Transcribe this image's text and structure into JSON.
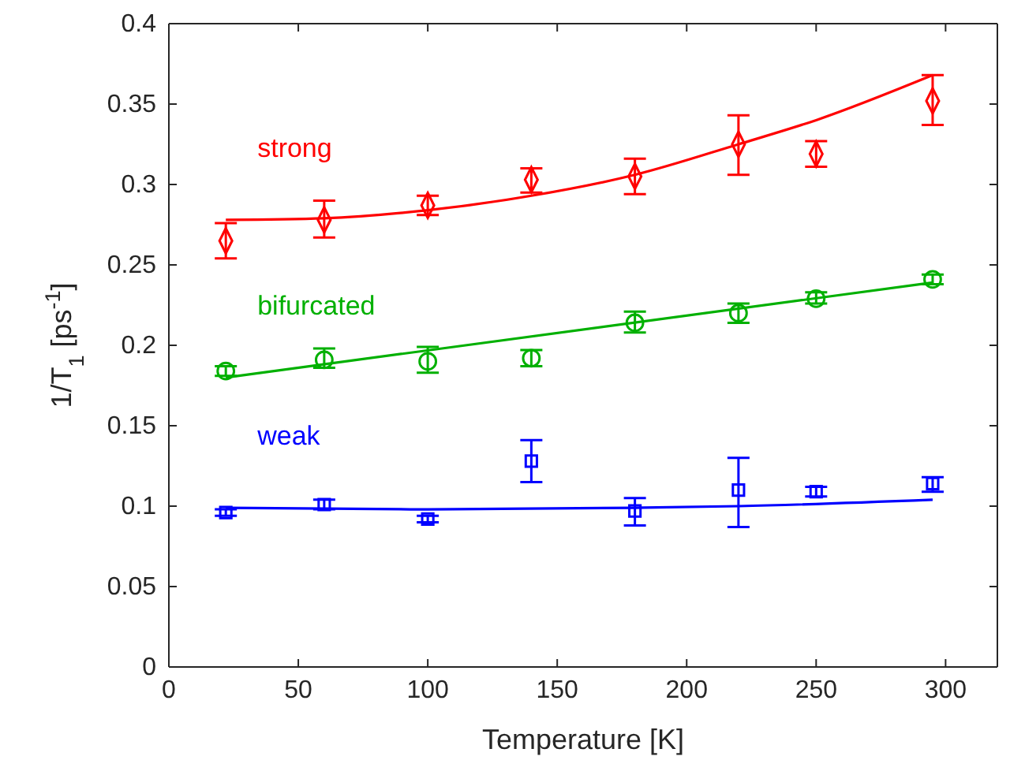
{
  "chart_data": {
    "type": "scatter",
    "xlabel": "Temperature [K]",
    "ylabel": "1/T$_{1}$ [ps$^{-1}$]",
    "xlim": [
      0,
      320
    ],
    "xticks": [
      0,
      50,
      100,
      150,
      200,
      250,
      300
    ],
    "ylim": [
      0,
      0.4
    ],
    "yticks": [
      0,
      0.05,
      0.1,
      0.15,
      0.2,
      0.25,
      0.3,
      0.35,
      0.4
    ],
    "grid": false,
    "legend": false,
    "series": [
      {
        "name": "strong",
        "marker": "diamond",
        "color": "#ff0000",
        "x": [
          22,
          60,
          100,
          140,
          180,
          220,
          250,
          295
        ],
        "values": [
          0.265,
          0.278,
          0.287,
          0.303,
          0.305,
          0.325,
          0.319,
          0.352
        ],
        "errors": [
          [
            0.254,
            0.276
          ],
          [
            0.267,
            0.29
          ],
          [
            0.281,
            0.293
          ],
          [
            0.295,
            0.31
          ],
          [
            0.294,
            0.316
          ],
          [
            0.306,
            0.343
          ],
          [
            0.311,
            0.327
          ],
          [
            0.337,
            0.368
          ]
        ]
      },
      {
        "type": "line",
        "color": "#ff0000",
        "x": [
          22,
          60,
          100,
          140,
          180,
          220,
          250,
          295
        ],
        "values": [
          0.278,
          0.279,
          0.284,
          0.293,
          0.306,
          0.325,
          0.34,
          0.368
        ]
      },
      {
        "name": "bifurcated",
        "marker": "circle",
        "color": "#00b000",
        "x": [
          22,
          60,
          100,
          140,
          180,
          220,
          250,
          295
        ],
        "values": [
          0.184,
          0.191,
          0.19,
          0.192,
          0.214,
          0.22,
          0.229,
          0.241
        ],
        "errors": [
          [
            0.181,
            0.187
          ],
          [
            0.186,
            0.198
          ],
          [
            0.183,
            0.199
          ],
          [
            0.187,
            0.197
          ],
          [
            0.208,
            0.221
          ],
          [
            0.214,
            0.226
          ],
          [
            0.226,
            0.233
          ],
          [
            0.238,
            0.244
          ]
        ]
      },
      {
        "type": "line",
        "color": "#00b000",
        "x": [
          22,
          295
        ],
        "values": [
          0.18,
          0.239
        ]
      },
      {
        "name": "weak",
        "marker": "square",
        "color": "#0000ff",
        "x": [
          22,
          60,
          100,
          140,
          180,
          220,
          250,
          295
        ],
        "values": [
          0.096,
          0.101,
          0.092,
          0.128,
          0.097,
          0.11,
          0.109,
          0.114
        ],
        "errors": [
          [
            0.094,
            0.098
          ],
          [
            0.098,
            0.104
          ],
          [
            0.09,
            0.094
          ],
          [
            0.115,
            0.141
          ],
          [
            0.088,
            0.105
          ],
          [
            0.087,
            0.13
          ],
          [
            0.106,
            0.112
          ],
          [
            0.109,
            0.118
          ]
        ]
      },
      {
        "type": "line",
        "color": "#0000ff",
        "x": [
          22,
          100,
          180,
          220,
          295
        ],
        "values": [
          0.099,
          0.098,
          0.099,
          0.1,
          0.104
        ]
      }
    ]
  }
}
